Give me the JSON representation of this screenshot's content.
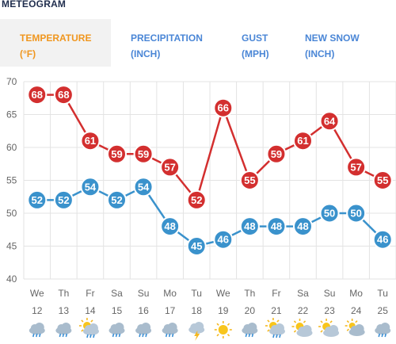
{
  "header": {
    "title": "METEOGRAM"
  },
  "tabs": [
    {
      "line1": "TEMPERATURE",
      "line2": "(°F)",
      "active": true
    },
    {
      "line1": "PRECIPITATION",
      "line2": "(INCH)",
      "active": false
    },
    {
      "line1": "GUST",
      "line2": "(MPH)",
      "active": false
    },
    {
      "line1": "NEW SNOW",
      "line2": "(INCH)",
      "active": false
    }
  ],
  "colors": {
    "high": "#d32f2f",
    "low": "#3a92cc",
    "grid": "#e3e3e3",
    "axis_text": "#666666",
    "active_tab": "#f0961e",
    "tab": "#4a86d6"
  },
  "chart_data": {
    "type": "line",
    "ylim": [
      40,
      70
    ],
    "yticks": [
      "70",
      "65",
      "60",
      "55",
      "50",
      "45",
      "40"
    ],
    "days": [
      "We",
      "Th",
      "Fr",
      "Sa",
      "Su",
      "Mo",
      "Tu",
      "We",
      "Th",
      "Fr",
      "Sa",
      "Su",
      "Mo",
      "Tu"
    ],
    "dates": [
      "12",
      "13",
      "14",
      "15",
      "16",
      "17",
      "18",
      "19",
      "20",
      "21",
      "22",
      "23",
      "24",
      "25"
    ],
    "series": [
      {
        "values": [
          68,
          68,
          61,
          59,
          59,
          57,
          52,
          66,
          55,
          59,
          61,
          64,
          57,
          55
        ]
      },
      {
        "values": [
          52,
          52,
          54,
          52,
          54,
          48,
          45,
          46,
          48,
          48,
          48,
          50,
          50,
          46
        ]
      }
    ],
    "icons": [
      "cloudy-rain-icon",
      "cloudy-rain-icon",
      "sun-cloud-rain-icon",
      "cloudy-rain-icon",
      "cloudy-rain-icon",
      "cloudy-rain-icon",
      "thunderstorm-icon",
      "sun-icon",
      "cloudy-rain-icon",
      "sun-cloud-rain-icon",
      "sun-cloud-icon",
      "sun-cloud-icon",
      "cloudy-icon",
      "cloudy-rain-icon"
    ]
  }
}
